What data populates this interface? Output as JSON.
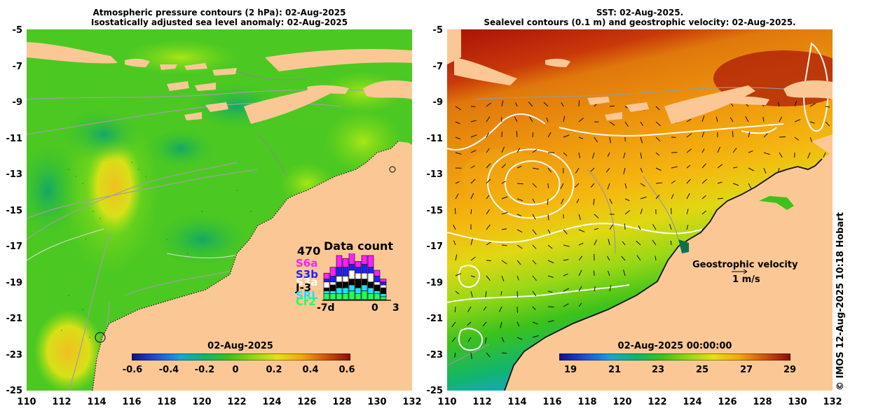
{
  "left_panel": {
    "title_line1": "Atmospheric pressure contours (2 hPa): 02-Aug-2025",
    "title_line2": "Isostatically adjusted sea level anomaly: 02-Aug-2025",
    "colorbar": {
      "title": "02-Aug-2025",
      "ticks": [
        "-0.6",
        "-0.4",
        "-0.2",
        "0",
        "0.2",
        "0.4",
        "0.6"
      ],
      "colors": [
        "#10108a",
        "#1e4fd0",
        "#17a3d6",
        "#10b46f",
        "#3bc21a",
        "#8fd812",
        "#e6e010",
        "#f3a70c",
        "#d0520c",
        "#8e0a0a"
      ]
    },
    "data_count": {
      "label": "Data count",
      "max_value": "470",
      "satellites": [
        "S6a",
        "S3b",
        "S3a",
        "J-3",
        "SRL",
        "Cr2"
      ],
      "satellite_colors": [
        "#ff20ff",
        "#2020ff",
        "#ffffff",
        "#000000",
        "#20e0ff",
        "#20ff60"
      ],
      "x_start": "-7d",
      "x_zero": "0",
      "x_end": "3"
    }
  },
  "right_panel": {
    "title_line1": "SST: 02-Aug-2025.",
    "title_line2": "Sealevel contours (0.1 m) and geostrophic velocity: 02-Aug-2025.",
    "colorbar": {
      "title": "02-Aug-2025 00:00:00",
      "ticks": [
        "19",
        "21",
        "23",
        "25",
        "27",
        "29"
      ],
      "colors": [
        "#10108a",
        "#1e4fd0",
        "#17a3d6",
        "#10b46f",
        "#3bc21a",
        "#8fd812",
        "#e6e010",
        "#f3a70c",
        "#d0520c",
        "#8e0a0a"
      ]
    },
    "velocity_label": "Geostrophic velocity",
    "velocity_scale": "1 m/s"
  },
  "axes": {
    "lat_ticks": [
      "-5",
      "-7",
      "-9",
      "-11",
      "-13",
      "-15",
      "-17",
      "-19",
      "-21",
      "-23",
      "-25"
    ],
    "lon_ticks": [
      "110",
      "112",
      "114",
      "116",
      "118",
      "120",
      "122",
      "124",
      "126",
      "128",
      "130",
      "132"
    ]
  },
  "credit": "© IMOS 12-Aug-2025 10:18 Hobart",
  "land_color": "#fbc895"
}
